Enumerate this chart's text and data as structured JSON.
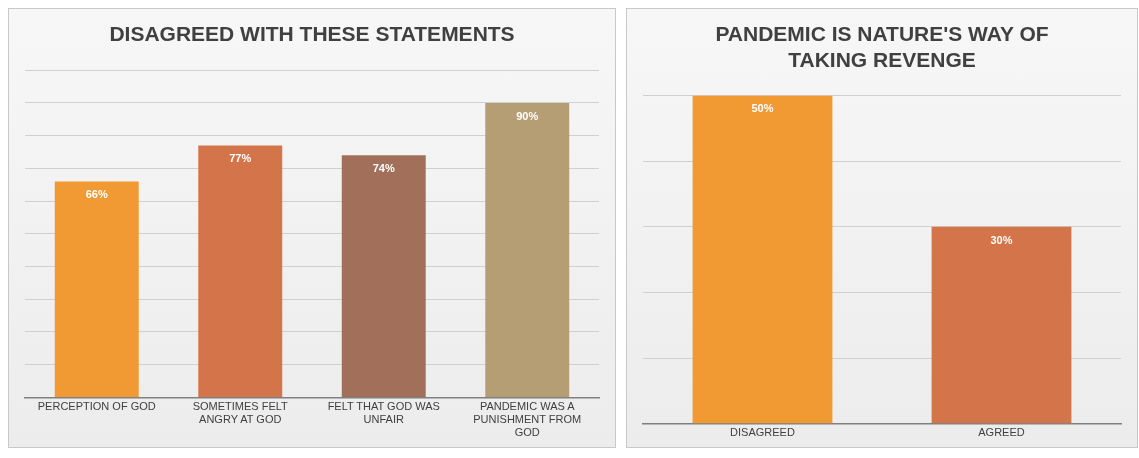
{
  "chart_data": [
    {
      "type": "bar",
      "title": "DISAGREED WITH THESE STATEMENTS",
      "categories": [
        "PERCEPTION OF GOD",
        "SOMETIMES FELT ANGRY AT GOD",
        "FELT THAT GOD WAS UNFAIR",
        "PANDEMIC WAS A PUNISHMENT FROM GOD"
      ],
      "values": [
        66,
        77,
        74,
        90
      ],
      "colors": [
        "#f19a34",
        "#d4744a",
        "#a2705a",
        "#b59d74"
      ],
      "ylim": [
        0,
        100
      ],
      "yticks": [
        0,
        10,
        20,
        30,
        40,
        50,
        60,
        70,
        80,
        90,
        100
      ],
      "tick_labels": "x",
      "grid": "y",
      "value_labels": [
        "66%",
        "77%",
        "74%",
        "90%"
      ]
    },
    {
      "type": "bar",
      "title": "PANDEMIC IS NATURE'S WAY OF TAKING REVENGE",
      "categories": [
        "DISAGREED",
        "AGREED"
      ],
      "values": [
        50,
        30
      ],
      "colors": [
        "#f19a34",
        "#d4744a"
      ],
      "ylim": [
        0,
        50
      ],
      "yticks": [
        0,
        10,
        20,
        30,
        40,
        50
      ],
      "tick_labels": "x",
      "grid": "y",
      "value_labels": [
        "50%",
        "30%"
      ]
    }
  ]
}
